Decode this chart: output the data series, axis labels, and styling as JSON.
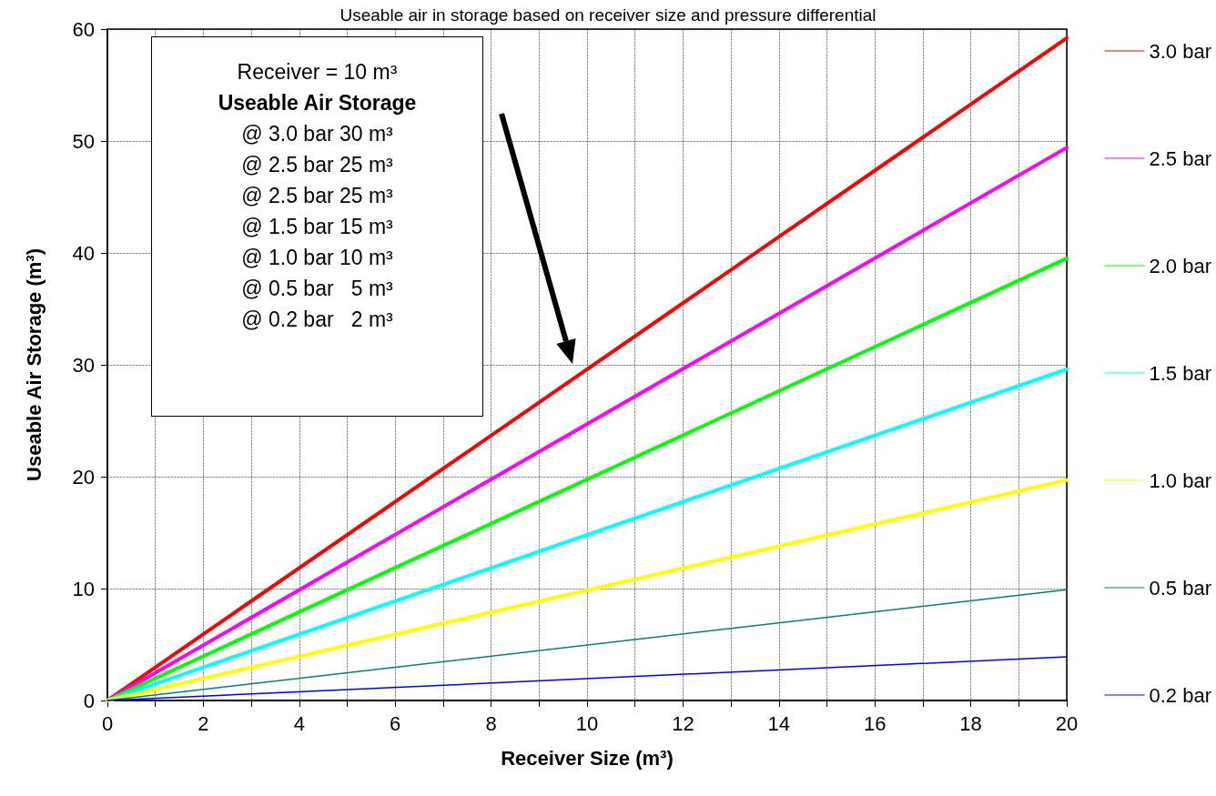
{
  "chart_data": {
    "type": "line",
    "title": "Useable air in storage based on receiver size and pressure differential",
    "xlabel": "Receiver Size (m³)",
    "ylabel": "Useable Air Storage (m³)",
    "x": [
      0,
      20
    ],
    "series": [
      {
        "name": "3.0 bar",
        "color": "#ff0000",
        "values": [
          0,
          59.2
        ]
      },
      {
        "name": "2.5 bar",
        "color": "#ff00ff",
        "values": [
          0,
          49.4
        ]
      },
      {
        "name": "2.0 bar",
        "color": "#00ff00",
        "values": [
          0,
          39.5
        ]
      },
      {
        "name": "1.5 bar",
        "color": "#00ffff",
        "values": [
          0,
          29.6
        ]
      },
      {
        "name": "1.0 bar",
        "color": "#ffff00",
        "values": [
          0,
          19.7
        ]
      },
      {
        "name": "0.5 bar",
        "color": "#008080",
        "values": [
          0,
          9.9
        ]
      },
      {
        "name": "0.2 bar",
        "color": "#0000ff",
        "values": [
          0,
          3.9
        ]
      }
    ],
    "xlim": [
      0,
      20
    ],
    "ylim": [
      0,
      60
    ],
    "xticks": [
      0,
      {
        "value": 1,
        "label": null
      },
      2,
      {
        "value": 3,
        "label": null
      },
      4,
      {
        "value": 5,
        "label": null
      },
      6,
      {
        "value": 7,
        "label": null
      },
      8,
      {
        "value": 9,
        "label": null
      },
      10,
      {
        "value": 11,
        "label": null
      },
      12,
      {
        "value": 13,
        "label": null
      },
      14,
      {
        "value": 15,
        "label": null
      },
      16,
      {
        "value": 17,
        "label": null
      },
      18,
      {
        "value": 19,
        "label": null
      },
      20
    ],
    "yticks": [
      0,
      10,
      20,
      30,
      40,
      50,
      60
    ],
    "grid": true,
    "legend": "right",
    "marker": "none",
    "line_style": "solid",
    "annotations": [
      "Receiver = 10 m³",
      "Useable Air Storage",
      "@ 3.0 bar 30 m³",
      "@ 2.5 bar 25 m³",
      "@ 2.5 bar 25 m³",
      "@ 1.5 bar 15 m³",
      "@ 1.0 bar 10 m³",
      "@ 0.5 bar   5 m³",
      "@ 0.2 bar   2 m³"
    ]
  }
}
